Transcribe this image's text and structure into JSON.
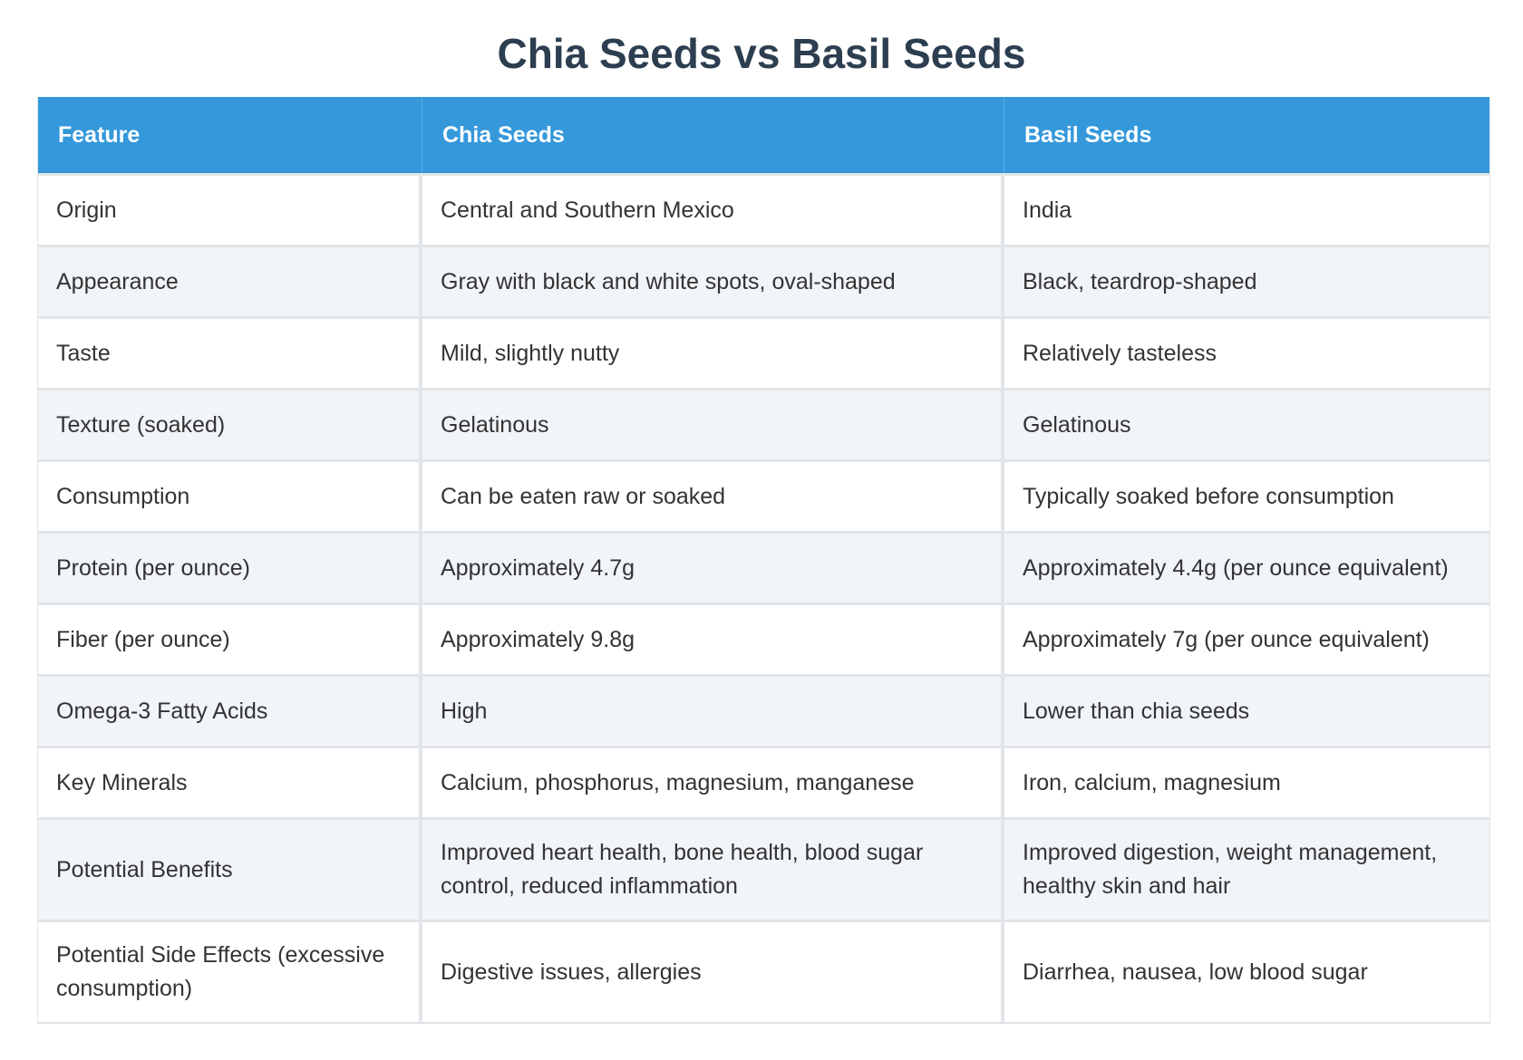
{
  "title": "Chia Seeds vs Basil Seeds",
  "colors": {
    "header_bg": "#3498db",
    "title": "#2c3e50",
    "row_alt": "#f1f4f8"
  },
  "table": {
    "headers": [
      "Feature",
      "Chia Seeds",
      "Basil Seeds"
    ],
    "rows": [
      [
        "Origin",
        "Central and Southern Mexico",
        "India"
      ],
      [
        "Appearance",
        "Gray with black and white spots, oval-shaped",
        "Black, teardrop-shaped"
      ],
      [
        "Taste",
        "Mild, slightly nutty",
        "Relatively tasteless"
      ],
      [
        "Texture (soaked)",
        "Gelatinous",
        "Gelatinous"
      ],
      [
        "Consumption",
        "Can be eaten raw or soaked",
        "Typically soaked before consumption"
      ],
      [
        "Protein (per ounce)",
        "Approximately 4.7g",
        "Approximately 4.4g (per ounce equivalent)"
      ],
      [
        "Fiber (per ounce)",
        "Approximately 9.8g",
        "Approximately 7g (per ounce equivalent)"
      ],
      [
        "Omega-3 Fatty Acids",
        "High",
        "Lower than chia seeds"
      ],
      [
        "Key Minerals",
        "Calcium, phosphorus, magnesium, manganese",
        "Iron, calcium, magnesium"
      ],
      [
        "Potential Benefits",
        "Improved heart health, bone health, blood sugar control, reduced inflammation",
        "Improved digestion, weight management, healthy skin and hair"
      ],
      [
        "Potential Side Effects (excessive consumption)",
        "Digestive issues, allergies",
        "Diarrhea, nausea, low blood sugar"
      ]
    ]
  }
}
